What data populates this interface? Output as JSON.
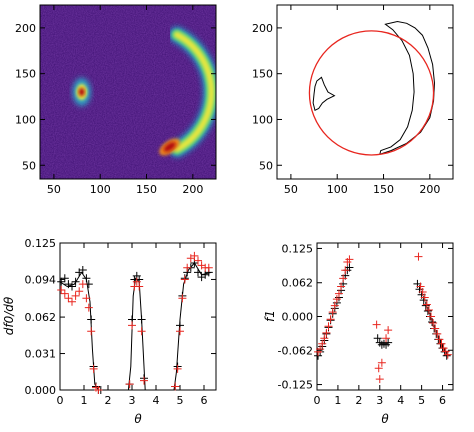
{
  "figure": {
    "panels": [
      "image_map",
      "contour_fit",
      "df0_dtheta",
      "f1"
    ]
  },
  "colors": {
    "background": "#ffffff",
    "axes": "#000000",
    "series_black": "#000000",
    "series_red": "#e8261f",
    "map_low": "#3b0f70",
    "map_high": "#b40d0d"
  },
  "chart_data": [
    {
      "id": "image_map",
      "type": "heatmap",
      "title": "",
      "xlabel": "",
      "ylabel": "",
      "xlim": [
        35,
        225
      ],
      "ylim": [
        35,
        225
      ],
      "xticks": [
        50,
        100,
        150,
        200
      ],
      "yticks": [
        50,
        100,
        150,
        200
      ],
      "colormap": "rainbow (purple background, yellow-green ring, red peaks)",
      "features": [
        {
          "name": "blob",
          "center": [
            80,
            130
          ],
          "peak_value": "high"
        },
        {
          "name": "arc",
          "center": [
            150,
            130
          ],
          "radius": 70,
          "theta_range_deg": [
            -62,
            62
          ],
          "peak_location": [
            175,
            70
          ]
        }
      ]
    },
    {
      "id": "contour_fit",
      "type": "line",
      "title": "",
      "xlabel": "",
      "ylabel": "",
      "xlim": [
        35,
        225
      ],
      "ylim": [
        35,
        225
      ],
      "xticks": [
        50,
        100,
        150,
        200
      ],
      "yticks": [
        50,
        100,
        150,
        200
      ],
      "series": [
        {
          "color": "#e8261f",
          "shape": "circle",
          "center": [
            137,
            129
          ],
          "radius": 67
        },
        {
          "color": "#000000",
          "shape": "contours",
          "description": "outlines of blob near (80,130) and arc from (145,60) to (200,205)"
        }
      ]
    },
    {
      "id": "df0_dtheta",
      "type": "scatter",
      "title": "",
      "xlabel": "θ",
      "ylabel": "df0/dθ",
      "xlim": [
        0,
        6.5
      ],
      "ylim": [
        0,
        0.125
      ],
      "xticks": [
        0,
        1,
        2,
        3,
        4,
        5,
        6
      ],
      "yticks": [
        0.0,
        0.031,
        0.062,
        0.094,
        0.125
      ],
      "series": [
        {
          "color": "#000000",
          "marker": "+",
          "x": [
            0.05,
            0.2,
            0.35,
            0.5,
            0.65,
            0.8,
            0.95,
            1.1,
            1.2,
            1.3,
            1.4,
            1.5,
            1.6,
            1.7,
            2.9,
            3.0,
            3.1,
            3.2,
            3.3,
            3.4,
            3.5,
            4.8,
            4.9,
            5.0,
            5.1,
            5.2,
            5.3,
            5.45,
            5.6,
            5.75,
            5.9,
            6.05,
            6.2
          ],
          "y": [
            0.092,
            0.095,
            0.09,
            0.088,
            0.092,
            0.1,
            0.102,
            0.095,
            0.09,
            0.06,
            0.02,
            0.003,
            0.0,
            0.0,
            0.005,
            0.06,
            0.094,
            0.097,
            0.094,
            0.06,
            0.01,
            0.003,
            0.02,
            0.055,
            0.08,
            0.095,
            0.1,
            0.104,
            0.108,
            0.1,
            0.096,
            0.098,
            0.1
          ]
        },
        {
          "color": "#e8261f",
          "marker": "+",
          "x": [
            0.05,
            0.2,
            0.35,
            0.5,
            0.65,
            0.8,
            0.95,
            1.1,
            1.2,
            1.3,
            1.4,
            1.5,
            1.6,
            2.9,
            3.0,
            3.1,
            3.2,
            3.3,
            3.4,
            3.5,
            4.8,
            4.9,
            5.0,
            5.1,
            5.2,
            5.3,
            5.45,
            5.6,
            5.75,
            5.9,
            6.05,
            6.2
          ],
          "y": [
            0.085,
            0.082,
            0.078,
            0.075,
            0.08,
            0.084,
            0.09,
            0.078,
            0.07,
            0.05,
            0.018,
            0.002,
            0.0,
            0.005,
            0.055,
            0.088,
            0.092,
            0.088,
            0.05,
            0.008,
            0.003,
            0.018,
            0.05,
            0.078,
            0.094,
            0.104,
            0.112,
            0.114,
            0.11,
            0.106,
            0.104,
            0.104
          ]
        },
        {
          "color": "#000000",
          "style": "line",
          "x": [
            0.0,
            0.3,
            0.6,
            0.9,
            1.1,
            1.25,
            1.35,
            1.45,
            1.6,
            2.85,
            2.95,
            3.05,
            3.15,
            3.3,
            3.4,
            3.55,
            4.75,
            4.85,
            5.0,
            5.15,
            5.35,
            5.6,
            5.9,
            6.3
          ],
          "y": [
            0.092,
            0.088,
            0.09,
            0.1,
            0.094,
            0.075,
            0.035,
            0.005,
            0.0,
            0.0,
            0.02,
            0.08,
            0.095,
            0.092,
            0.06,
            0.0,
            0.0,
            0.015,
            0.06,
            0.09,
            0.102,
            0.108,
            0.098,
            0.1
          ]
        }
      ]
    },
    {
      "id": "f1",
      "type": "scatter",
      "title": "",
      "xlabel": "θ",
      "ylabel": "f1",
      "xlim": [
        0,
        6.5
      ],
      "ylim": [
        -0.135,
        0.135
      ],
      "xticks": [
        0,
        1,
        2,
        3,
        4,
        5,
        6
      ],
      "yticks": [
        -0.125,
        -0.062,
        0.0,
        0.062,
        0.125
      ],
      "series": [
        {
          "color": "#000000",
          "marker": "+",
          "x": [
            0.05,
            0.15,
            0.25,
            0.35,
            0.45,
            0.55,
            0.65,
            0.75,
            0.85,
            0.95,
            1.05,
            1.15,
            1.25,
            1.35,
            1.45,
            1.55,
            2.9,
            3.0,
            3.1,
            3.2,
            3.3,
            3.4,
            4.8,
            4.9,
            5.0,
            5.1,
            5.2,
            5.3,
            5.4,
            5.5,
            5.6,
            5.7,
            5.8,
            5.9,
            6.0,
            6.1,
            6.2
          ],
          "y": [
            -0.072,
            -0.065,
            -0.055,
            -0.044,
            -0.032,
            -0.02,
            -0.007,
            0.005,
            0.015,
            0.025,
            0.035,
            0.048,
            0.06,
            0.075,
            0.085,
            0.09,
            -0.04,
            -0.048,
            -0.052,
            -0.05,
            -0.052,
            -0.048,
            0.06,
            0.05,
            0.04,
            0.03,
            0.02,
            0.01,
            0.0,
            -0.01,
            -0.022,
            -0.032,
            -0.042,
            -0.05,
            -0.058,
            -0.065,
            -0.072
          ]
        },
        {
          "color": "#e8261f",
          "marker": "+",
          "x": [
            0.05,
            0.15,
            0.25,
            0.35,
            0.45,
            0.55,
            0.65,
            0.75,
            0.85,
            0.95,
            1.05,
            1.15,
            1.25,
            1.35,
            1.45,
            1.55,
            2.85,
            2.95,
            3.0,
            3.1,
            3.3,
            3.4,
            4.85,
            4.95,
            5.05,
            5.15,
            5.25,
            5.35,
            5.45,
            5.55,
            5.65,
            5.75,
            5.85,
            5.95,
            6.05,
            6.15,
            6.25
          ],
          "y": [
            -0.065,
            -0.06,
            -0.05,
            -0.04,
            -0.03,
            -0.018,
            -0.005,
            0.008,
            0.02,
            0.032,
            0.042,
            0.055,
            0.07,
            0.085,
            0.1,
            0.105,
            -0.015,
            -0.095,
            -0.115,
            -0.085,
            -0.04,
            -0.025,
            0.11,
            0.055,
            0.045,
            0.035,
            0.022,
            0.012,
            0.0,
            -0.012,
            -0.022,
            -0.032,
            -0.042,
            -0.05,
            -0.058,
            -0.064,
            -0.07
          ]
        }
      ]
    }
  ]
}
